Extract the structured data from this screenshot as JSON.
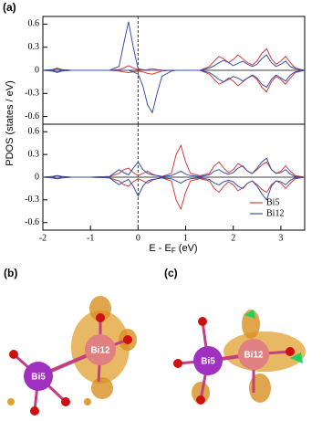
{
  "chart_data": [
    {
      "type": "line",
      "panel_label": "(a)",
      "ylabel": "PDOS (states / eV)",
      "x": [
        -2,
        -1.8,
        -1.7,
        -1.6,
        -1.4,
        -1,
        -0.6,
        -0.4,
        -0.3,
        -0.2,
        -0.1,
        0,
        0.1,
        0.2,
        0.3,
        0.4,
        0.5,
        0.7,
        0.8,
        0.9,
        1.0,
        1.1,
        1.3,
        1.5,
        1.6,
        1.7,
        1.8,
        1.9,
        2.0,
        2.1,
        2.2,
        2.3,
        2.4,
        2.5,
        2.6,
        2.7,
        2.8,
        2.9,
        3.0,
        3.1,
        3.2,
        3.3,
        3.5
      ],
      "xlim": [
        -2,
        3.5
      ],
      "ylim": [
        -0.7,
        0.7
      ],
      "yticks": [
        -0.6,
        -0.3,
        0,
        0.3,
        0.6
      ],
      "vline": 0,
      "series": [
        {
          "name": "Bi5",
          "color": "#d04040",
          "spin_up": [
            0,
            0.01,
            0.03,
            0.01,
            0,
            0,
            0,
            0.01,
            0.03,
            0.06,
            0.03,
            0.01,
            0,
            0.01,
            0.02,
            0.01,
            0,
            0,
            0,
            0,
            0,
            0,
            0,
            0.05,
            0.12,
            0.18,
            0.15,
            0.1,
            0.14,
            0.2,
            0.15,
            0.1,
            0.07,
            0.12,
            0.22,
            0.28,
            0.15,
            0.08,
            0.12,
            0.18,
            0.1,
            0.03,
            0
          ],
          "spin_down": [
            0,
            -0.01,
            -0.03,
            -0.01,
            0,
            0,
            0,
            -0.01,
            -0.02,
            -0.03,
            -0.02,
            -0.01,
            -0.02,
            -0.04,
            -0.05,
            -0.03,
            -0.01,
            0,
            0,
            0,
            0,
            0,
            0,
            -0.05,
            -0.12,
            -0.18,
            -0.15,
            -0.1,
            -0.14,
            -0.2,
            -0.15,
            -0.1,
            -0.07,
            -0.12,
            -0.22,
            -0.28,
            -0.15,
            -0.08,
            -0.12,
            -0.18,
            -0.1,
            -0.03,
            0
          ]
        },
        {
          "name": "Bi12",
          "color": "#3a4fa8",
          "spin_up": [
            0,
            0.01,
            0.02,
            0.01,
            0,
            0,
            0,
            0.05,
            0.35,
            0.63,
            0.3,
            0.02,
            0.01,
            0,
            0,
            0,
            0,
            0,
            0,
            0,
            0,
            0,
            0,
            0.03,
            0.06,
            0.1,
            0.13,
            0.1,
            0.06,
            0.09,
            0.12,
            0.08,
            0.05,
            0.08,
            0.15,
            0.2,
            0.1,
            0.05,
            0.08,
            0.12,
            0.05,
            0.02,
            0
          ],
          "spin_down": [
            0,
            -0.01,
            -0.02,
            -0.01,
            0,
            0,
            0,
            0,
            0,
            0,
            -0.02,
            -0.05,
            -0.2,
            -0.45,
            -0.55,
            -0.3,
            -0.08,
            -0.01,
            0,
            0,
            0,
            0,
            0,
            -0.03,
            -0.07,
            -0.12,
            -0.15,
            -0.12,
            -0.08,
            -0.1,
            -0.14,
            -0.1,
            -0.06,
            -0.1,
            -0.18,
            -0.22,
            -0.12,
            -0.06,
            -0.1,
            -0.14,
            -0.06,
            -0.02,
            0
          ]
        }
      ]
    },
    {
      "type": "line",
      "xlabel": [
        "E - E",
        "F",
        " (eV)"
      ],
      "x": [
        -2,
        -1.8,
        -1.7,
        -1.6,
        -1.4,
        -1,
        -0.6,
        -0.4,
        -0.3,
        -0.2,
        -0.1,
        0,
        0.1,
        0.2,
        0.3,
        0.4,
        0.5,
        0.7,
        0.8,
        0.9,
        1.0,
        1.1,
        1.3,
        1.5,
        1.6,
        1.7,
        1.8,
        1.9,
        2.0,
        2.1,
        2.2,
        2.3,
        2.4,
        2.5,
        2.6,
        2.7,
        2.8,
        2.9,
        3.0,
        3.1,
        3.2,
        3.3,
        3.5
      ],
      "xlim": [
        -2,
        3.5
      ],
      "xticks": [
        -2,
        -1,
        0,
        1,
        2,
        3
      ],
      "ylim": [
        -0.7,
        0.7
      ],
      "yticks": [
        -0.6,
        -0.3,
        0,
        0.3,
        0.6
      ],
      "vline": 0,
      "legend": "lower right",
      "series": [
        {
          "name": "Bi5",
          "color": "#d04040",
          "spin_up": [
            0,
            0.01,
            0.02,
            0.01,
            0,
            0,
            0.01,
            0.05,
            0.1,
            0.12,
            0.06,
            0.02,
            0.05,
            0.08,
            0.04,
            0.02,
            0.01,
            0.05,
            0.3,
            0.42,
            0.2,
            0.05,
            0.02,
            0.05,
            0.15,
            0.2,
            0.12,
            0.06,
            0.1,
            0.18,
            0.14,
            0.08,
            0.05,
            0.1,
            0.16,
            0.2,
            0.1,
            0.05,
            0.08,
            0.15,
            0.08,
            0.02,
            0
          ],
          "spin_down": [
            0,
            -0.01,
            -0.02,
            -0.01,
            0,
            0,
            -0.01,
            -0.05,
            -0.1,
            -0.12,
            -0.06,
            -0.02,
            -0.05,
            -0.08,
            -0.04,
            -0.02,
            -0.01,
            -0.05,
            -0.3,
            -0.42,
            -0.2,
            -0.05,
            -0.02,
            -0.05,
            -0.15,
            -0.2,
            -0.12,
            -0.06,
            -0.1,
            -0.18,
            -0.14,
            -0.08,
            -0.05,
            -0.1,
            -0.16,
            -0.2,
            -0.1,
            -0.05,
            -0.08,
            -0.15,
            -0.08,
            -0.02,
            0
          ]
        },
        {
          "name": "Bi12",
          "color": "#3a4fa8",
          "spin_up": [
            0,
            0.01,
            0.02,
            0.01,
            0,
            0,
            0.01,
            0.1,
            0.06,
            0.03,
            0.12,
            0.2,
            0.1,
            0.05,
            0.03,
            0.02,
            0.01,
            0.02,
            0.05,
            0.08,
            0.04,
            0.02,
            0.01,
            0.03,
            0.08,
            0.1,
            0.06,
            0.04,
            0.06,
            0.12,
            0.15,
            0.08,
            0.05,
            0.12,
            0.2,
            0.25,
            0.1,
            0.05,
            0.06,
            0.1,
            0.04,
            0.01,
            0
          ],
          "spin_down": [
            0,
            -0.01,
            -0.02,
            -0.01,
            0,
            0,
            -0.01,
            -0.1,
            -0.06,
            -0.03,
            -0.12,
            -0.25,
            -0.12,
            -0.05,
            -0.03,
            -0.02,
            -0.01,
            -0.02,
            -0.05,
            -0.08,
            -0.04,
            -0.02,
            -0.01,
            -0.03,
            -0.08,
            -0.1,
            -0.06,
            -0.04,
            -0.06,
            -0.12,
            -0.15,
            -0.08,
            -0.05,
            -0.12,
            -0.22,
            -0.3,
            -0.12,
            -0.05,
            -0.06,
            -0.1,
            -0.04,
            -0.01,
            0
          ]
        }
      ]
    }
  ],
  "images": [
    {
      "label": "(b)",
      "atoms": [
        "Bi5",
        "Bi12"
      ]
    },
    {
      "label": "(c)",
      "atoms": [
        "Bi5",
        "Bi12"
      ]
    }
  ]
}
